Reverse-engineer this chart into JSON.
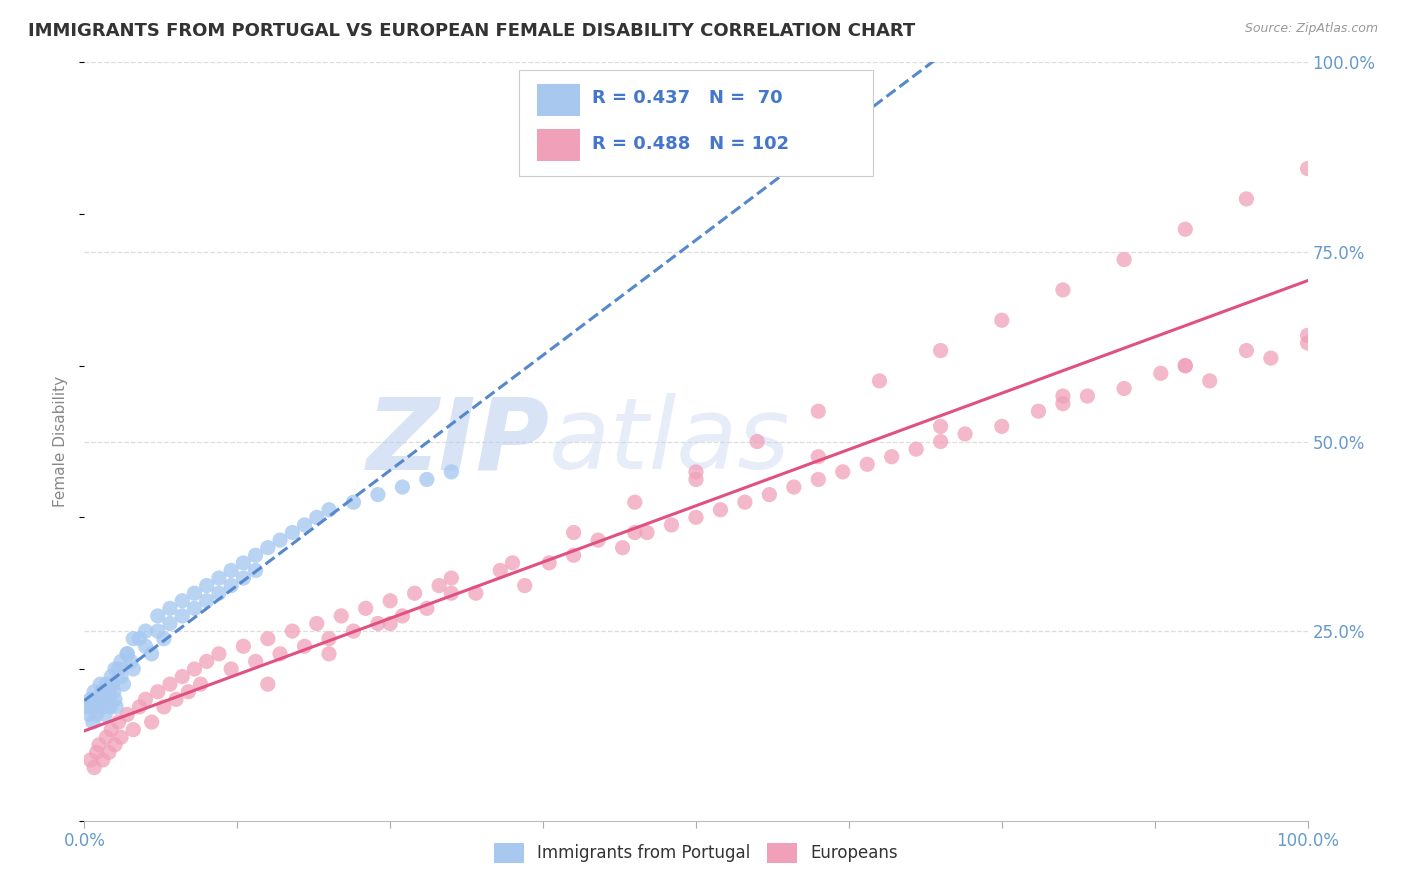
{
  "title": "IMMIGRANTS FROM PORTUGAL VS EUROPEAN FEMALE DISABILITY CORRELATION CHART",
  "source": "Source: ZipAtlas.com",
  "ylabel": "Female Disability",
  "blue_color": "#a8c8f0",
  "pink_color": "#f0a0b8",
  "blue_line_color": "#5588cc",
  "pink_line_color": "#e05080",
  "legend_text_color": "#4477cc",
  "axis_tick_color": "#6699cc",
  "title_color": "#333333",
  "source_color": "#999999",
  "grid_color": "#dddddd",
  "watermark_color": "#d0ddf0",
  "background_color": "#ffffff",
  "xlim": [
    0,
    100
  ],
  "ylim": [
    0,
    100
  ],
  "blue_x": [
    0.3,
    0.4,
    0.5,
    0.6,
    0.7,
    0.8,
    0.9,
    1.0,
    1.1,
    1.2,
    1.3,
    1.4,
    1.5,
    1.6,
    1.7,
    1.8,
    1.9,
    2.0,
    2.1,
    2.2,
    2.3,
    2.4,
    2.5,
    2.6,
    2.8,
    3.0,
    3.2,
    3.5,
    3.8,
    4.0,
    4.5,
    5.0,
    5.5,
    6.0,
    6.5,
    7.0,
    8.0,
    9.0,
    10.0,
    11.0,
    12.0,
    13.0,
    14.0,
    2.0,
    2.2,
    2.5,
    3.0,
    3.5,
    4.0,
    5.0,
    6.0,
    7.0,
    8.0,
    9.0,
    10.0,
    11.0,
    12.0,
    13.0,
    14.0,
    15.0,
    16.0,
    17.0,
    18.0,
    19.0,
    20.0,
    22.0,
    24.0,
    26.0,
    28.0,
    30.0
  ],
  "blue_y": [
    15,
    14,
    16,
    15,
    13,
    17,
    16,
    14,
    15,
    16,
    18,
    17,
    15,
    16,
    14,
    18,
    17,
    16,
    15,
    19,
    18,
    17,
    16,
    15,
    20,
    19,
    18,
    22,
    21,
    20,
    24,
    23,
    22,
    25,
    24,
    26,
    27,
    28,
    29,
    30,
    31,
    32,
    33,
    17,
    18,
    20,
    21,
    22,
    24,
    25,
    27,
    28,
    29,
    30,
    31,
    32,
    33,
    34,
    35,
    36,
    37,
    38,
    39,
    40,
    41,
    42,
    43,
    44,
    45,
    46
  ],
  "pink_x": [
    0.5,
    0.8,
    1.0,
    1.2,
    1.5,
    1.8,
    2.0,
    2.2,
    2.5,
    2.8,
    3.0,
    3.5,
    4.0,
    4.5,
    5.0,
    5.5,
    6.0,
    6.5,
    7.0,
    7.5,
    8.0,
    8.5,
    9.0,
    9.5,
    10.0,
    11.0,
    12.0,
    13.0,
    14.0,
    15.0,
    16.0,
    17.0,
    18.0,
    19.0,
    20.0,
    21.0,
    22.0,
    23.0,
    24.0,
    25.0,
    26.0,
    27.0,
    28.0,
    29.0,
    30.0,
    32.0,
    34.0,
    36.0,
    38.0,
    40.0,
    42.0,
    44.0,
    46.0,
    48.0,
    50.0,
    52.0,
    54.0,
    56.0,
    58.0,
    60.0,
    62.0,
    64.0,
    66.0,
    68.0,
    70.0,
    72.0,
    75.0,
    78.0,
    80.0,
    82.0,
    85.0,
    88.0,
    90.0,
    92.0,
    95.0,
    97.0,
    100.0,
    15.0,
    20.0,
    25.0,
    30.0,
    35.0,
    40.0,
    45.0,
    50.0,
    55.0,
    60.0,
    65.0,
    70.0,
    75.0,
    80.0,
    85.0,
    90.0,
    95.0,
    100.0,
    50.0,
    60.0,
    70.0,
    80.0,
    90.0,
    100.0,
    45.0
  ],
  "pink_y": [
    8,
    7,
    9,
    10,
    8,
    11,
    9,
    12,
    10,
    13,
    11,
    14,
    12,
    15,
    16,
    13,
    17,
    15,
    18,
    16,
    19,
    17,
    20,
    18,
    21,
    22,
    20,
    23,
    21,
    24,
    22,
    25,
    23,
    26,
    24,
    27,
    25,
    28,
    26,
    29,
    27,
    30,
    28,
    31,
    32,
    30,
    33,
    31,
    34,
    35,
    37,
    36,
    38,
    39,
    40,
    41,
    42,
    43,
    44,
    45,
    46,
    47,
    48,
    49,
    50,
    51,
    52,
    54,
    55,
    56,
    57,
    59,
    60,
    58,
    62,
    61,
    63,
    18,
    22,
    26,
    30,
    34,
    38,
    42,
    46,
    50,
    54,
    58,
    62,
    66,
    70,
    74,
    78,
    82,
    86,
    45,
    48,
    52,
    56,
    60,
    64,
    38
  ]
}
